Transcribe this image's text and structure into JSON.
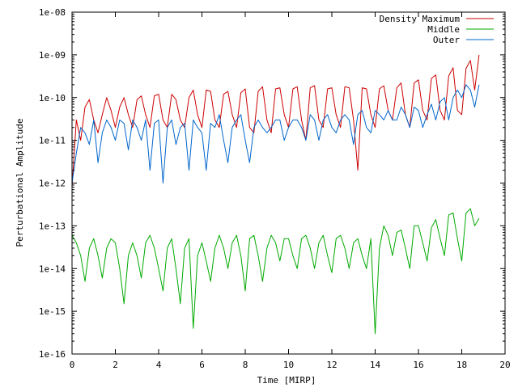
{
  "chart_data": {
    "type": "line",
    "title": "",
    "xlabel": "Time [MIRP]",
    "ylabel": "Perturbational Amplitude",
    "xlim": [
      0,
      20
    ],
    "ylim": [
      1e-16,
      1e-08
    ],
    "yscale": "log",
    "grid": false,
    "legend_position": "top-right",
    "x_ticks": [
      "0",
      "2",
      "4",
      "6",
      "8",
      "10",
      "12",
      "14",
      "16",
      "18",
      "20"
    ],
    "y_ticks": [
      "1e-16",
      "1e-15",
      "1e-14",
      "1e-13",
      "1e-12",
      "1e-11",
      "1e-10",
      "1e-09",
      "1e-08"
    ],
    "series": [
      {
        "name": "Density Maximum",
        "color": "#cc0000",
        "x": [
          0.0,
          0.2,
          0.4,
          0.6,
          0.8,
          1.0,
          1.2,
          1.4,
          1.6,
          1.8,
          2.0,
          2.2,
          2.4,
          2.6,
          2.8,
          3.0,
          3.2,
          3.4,
          3.6,
          3.8,
          4.0,
          4.2,
          4.4,
          4.6,
          4.8,
          5.0,
          5.2,
          5.4,
          5.6,
          5.8,
          6.0,
          6.2,
          6.4,
          6.6,
          6.8,
          7.0,
          7.2,
          7.4,
          7.6,
          7.8,
          8.0,
          8.2,
          8.4,
          8.6,
          8.8,
          9.0,
          9.2,
          9.4,
          9.6,
          9.8,
          10.0,
          10.2,
          10.4,
          10.6,
          10.8,
          11.0,
          11.2,
          11.4,
          11.6,
          11.8,
          12.0,
          12.2,
          12.4,
          12.6,
          12.8,
          13.0,
          13.2,
          13.4,
          13.6,
          13.8,
          14.0,
          14.2,
          14.4,
          14.6,
          14.8,
          15.0,
          15.2,
          15.4,
          15.6,
          15.8,
          16.0,
          16.2,
          16.4,
          16.6,
          16.8,
          17.0,
          17.2,
          17.4,
          17.6,
          17.8,
          18.0,
          18.2,
          18.4,
          18.6,
          18.8
        ],
        "y": [
          8e-13,
          3e-11,
          1e-11,
          6e-11,
          9e-11,
          3e-11,
          1.5e-11,
          4e-11,
          1e-10,
          5e-11,
          2e-11,
          6e-11,
          1e-10,
          4e-11,
          2e-11,
          9e-11,
          1.1e-10,
          4e-11,
          2e-11,
          1.1e-10,
          1.2e-10,
          3e-11,
          2e-11,
          1.2e-10,
          9e-11,
          3e-11,
          2e-11,
          1e-10,
          1.5e-10,
          4e-11,
          2e-11,
          1.5e-10,
          1.4e-10,
          3e-11,
          2e-11,
          1.2e-10,
          1.4e-10,
          4e-11,
          2e-11,
          1.3e-10,
          1.6e-10,
          2e-11,
          1.5e-11,
          1.4e-10,
          1.8e-10,
          3e-11,
          1.5e-11,
          1.6e-10,
          1.7e-10,
          4e-11,
          2e-11,
          1.6e-10,
          1.8e-10,
          3e-11,
          1e-11,
          1.7e-10,
          1.9e-10,
          3e-11,
          2e-11,
          1.6e-10,
          1.7e-10,
          4e-11,
          2e-11,
          1.8e-10,
          1.7e-10,
          3e-11,
          2e-12,
          1.7e-10,
          1.6e-10,
          4e-11,
          2e-11,
          1.6e-10,
          1.9e-10,
          5e-11,
          3e-11,
          1.7e-10,
          2.2e-10,
          4e-11,
          2e-11,
          2.2e-10,
          2.6e-10,
          5e-11,
          3e-11,
          2.8e-10,
          3.4e-10,
          5e-11,
          3e-11,
          3.2e-10,
          5e-10,
          5e-11,
          4e-11,
          4.8e-10,
          7.4e-10,
          1.5e-10,
          1e-09
        ]
      },
      {
        "name": "Middle",
        "color": "#00aa00",
        "x": [
          0.0,
          0.2,
          0.4,
          0.6,
          0.8,
          1.0,
          1.2,
          1.4,
          1.6,
          1.8,
          2.0,
          2.2,
          2.4,
          2.6,
          2.8,
          3.0,
          3.2,
          3.4,
          3.6,
          3.8,
          4.0,
          4.2,
          4.4,
          4.6,
          4.8,
          5.0,
          5.2,
          5.4,
          5.6,
          5.8,
          6.0,
          6.2,
          6.4,
          6.6,
          6.8,
          7.0,
          7.2,
          7.4,
          7.6,
          7.8,
          8.0,
          8.2,
          8.4,
          8.6,
          8.8,
          9.0,
          9.2,
          9.4,
          9.6,
          9.8,
          10.0,
          10.2,
          10.4,
          10.6,
          10.8,
          11.0,
          11.2,
          11.4,
          11.6,
          11.8,
          12.0,
          12.2,
          12.4,
          12.6,
          12.8,
          13.0,
          13.2,
          13.4,
          13.6,
          13.8,
          14.0,
          14.2,
          14.4,
          14.6,
          14.8,
          15.0,
          15.2,
          15.4,
          15.6,
          15.8,
          16.0,
          16.2,
          16.4,
          16.6,
          16.8,
          17.0,
          17.2,
          17.4,
          17.6,
          17.8,
          18.0,
          18.2,
          18.4,
          18.6,
          18.8
        ],
        "y": [
          6e-14,
          4e-14,
          2e-14,
          5e-15,
          3e-14,
          5e-14,
          2e-14,
          6e-15,
          3e-14,
          5e-14,
          4e-14,
          1e-14,
          1.5e-15,
          2e-14,
          4e-14,
          2e-14,
          6e-15,
          4e-14,
          6e-14,
          3e-14,
          1e-14,
          3e-15,
          3e-14,
          5e-14,
          1e-14,
          1.5e-15,
          3e-14,
          5e-14,
          4e-16,
          2e-14,
          4e-14,
          1.5e-14,
          5e-15,
          3e-14,
          6e-14,
          3e-14,
          1e-14,
          4e-14,
          6e-14,
          2e-14,
          3e-15,
          5e-14,
          6e-14,
          2e-14,
          5e-15,
          3e-14,
          6e-14,
          4e-14,
          1.5e-14,
          5e-14,
          5e-14,
          2e-14,
          1e-14,
          5e-14,
          6e-14,
          3e-14,
          1e-14,
          4e-14,
          6e-14,
          2e-14,
          8e-15,
          5e-14,
          6e-14,
          3e-14,
          1e-14,
          4e-14,
          5e-14,
          2e-14,
          1e-14,
          5e-14,
          3e-16,
          3e-14,
          1e-13,
          6e-14,
          2e-14,
          7e-14,
          8e-14,
          3e-14,
          1e-14,
          1e-13,
          1e-13,
          4e-14,
          1.5e-14,
          9e-14,
          1.4e-13,
          5e-14,
          2e-14,
          1.8e-13,
          2e-13,
          5e-14,
          1.5e-14,
          2e-13,
          2.5e-13,
          1e-13,
          1.5e-13
        ]
      },
      {
        "name": "Outer",
        "color": "#0066cc",
        "x": [
          0.0,
          0.2,
          0.4,
          0.6,
          0.8,
          1.0,
          1.2,
          1.4,
          1.6,
          1.8,
          2.0,
          2.2,
          2.4,
          2.6,
          2.8,
          3.0,
          3.2,
          3.4,
          3.6,
          3.8,
          4.0,
          4.2,
          4.4,
          4.6,
          4.8,
          5.0,
          5.2,
          5.4,
          5.6,
          5.8,
          6.0,
          6.2,
          6.4,
          6.6,
          6.8,
          7.0,
          7.2,
          7.4,
          7.6,
          7.8,
          8.0,
          8.2,
          8.4,
          8.6,
          8.8,
          9.0,
          9.2,
          9.4,
          9.6,
          9.8,
          10.0,
          10.2,
          10.4,
          10.6,
          10.8,
          11.0,
          11.2,
          11.4,
          11.6,
          11.8,
          12.0,
          12.2,
          12.4,
          12.6,
          12.8,
          13.0,
          13.2,
          13.4,
          13.6,
          13.8,
          14.0,
          14.2,
          14.4,
          14.6,
          14.8,
          15.0,
          15.2,
          15.4,
          15.6,
          15.8,
          16.0,
          16.2,
          16.4,
          16.6,
          16.8,
          17.0,
          17.2,
          17.4,
          17.6,
          17.8,
          18.0,
          18.2,
          18.4,
          18.6,
          18.8
        ],
        "y": [
          1e-12,
          5e-12,
          2e-11,
          1.5e-11,
          8e-12,
          3e-11,
          3e-12,
          1.5e-11,
          3e-11,
          2e-11,
          1e-11,
          3e-11,
          2.5e-11,
          6e-12,
          3e-11,
          2e-11,
          1e-11,
          3e-11,
          2e-12,
          2.5e-11,
          3e-11,
          1e-12,
          2e-11,
          3e-11,
          8e-12,
          2e-11,
          2.5e-11,
          2e-12,
          3e-11,
          2e-11,
          1.5e-11,
          2e-12,
          2.5e-11,
          2e-11,
          4e-11,
          1e-11,
          3e-12,
          2e-11,
          3e-11,
          4e-11,
          1e-11,
          3e-12,
          2e-11,
          3e-11,
          2e-11,
          1.5e-11,
          2e-11,
          3e-11,
          3e-11,
          1e-11,
          2e-11,
          3e-11,
          3e-11,
          2e-11,
          1e-11,
          4e-11,
          3e-11,
          1e-11,
          3e-11,
          4e-11,
          2e-11,
          1.5e-11,
          3e-11,
          4e-11,
          3e-11,
          8e-12,
          4e-11,
          5e-11,
          2e-11,
          1.5e-11,
          5e-11,
          4e-11,
          3e-11,
          5e-11,
          3e-11,
          3e-11,
          6e-11,
          4e-11,
          2e-11,
          6e-11,
          5e-11,
          2e-11,
          4e-11,
          7e-11,
          3e-11,
          8e-11,
          1e-10,
          3e-11,
          1e-10,
          1.5e-10,
          1e-10,
          2e-10,
          1.5e-10,
          6e-11,
          2e-10
        ]
      }
    ]
  }
}
